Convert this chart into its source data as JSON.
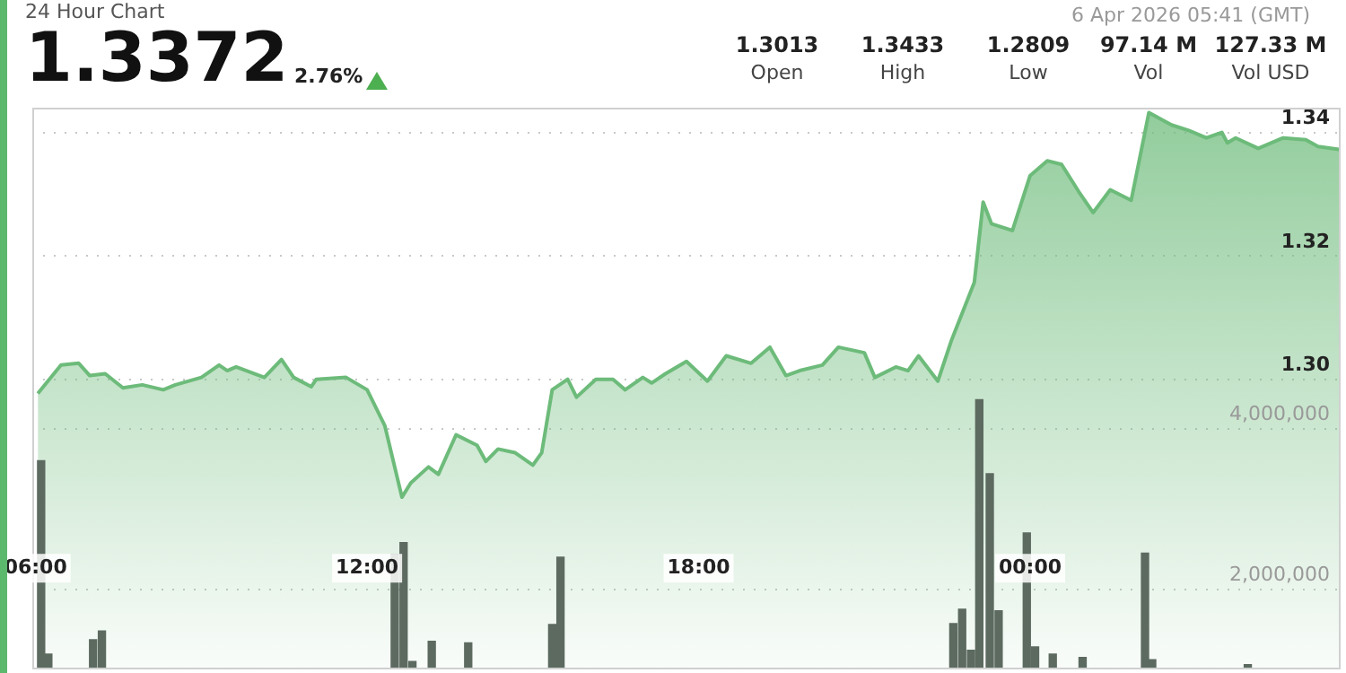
{
  "chart_data": {
    "type": "area",
    "title": "24 Hour Chart",
    "annotations": [
      "1.3372",
      "2.76%",
      "1.3013",
      "Open",
      "1.3433",
      "High",
      "1.2809",
      "Low",
      "97.14 M",
      "Vol",
      "127.33 M",
      "Vol USD",
      "6 Apr 2026 05:41 (GMT)"
    ],
    "xlim": [
      5.94,
      29.62
    ],
    "xticks": [
      {
        "value": 6,
        "label": "06:00"
      },
      {
        "value": 12,
        "label": "12:00"
      },
      {
        "value": 18,
        "label": "18:00"
      },
      {
        "value": 24,
        "label": "00:00"
      }
    ],
    "ylim": [
      1.253,
      1.344
    ],
    "yticks": [
      {
        "value": 1.3,
        "label": "1.30"
      },
      1.32,
      1.34
    ],
    "y2lim": [
      1000000,
      8000000
    ],
    "y2ticks": [
      {
        "value": 2000000,
        "label": "2,000,000"
      },
      {
        "value": 4000000,
        "label": "4,000,000"
      }
    ],
    "grid": "y",
    "legend": false,
    "marker": "none",
    "line_style": "solid",
    "series": [
      {
        "color": "#6dbb7a",
        "x": [
          6.04,
          6.46,
          6.78,
          6.98,
          7.26,
          7.58,
          7.93,
          8.31,
          8.53,
          9.0,
          9.32,
          9.47,
          9.63,
          10.14,
          10.45,
          10.67,
          10.99,
          11.08,
          11.62,
          12.0,
          12.32,
          12.63,
          12.79,
          13.11,
          13.29,
          13.61,
          13.99,
          14.15,
          14.37,
          14.68,
          15.0,
          15.16,
          15.35,
          15.63,
          15.79,
          16.14,
          16.45,
          16.67,
          16.99,
          17.15,
          17.4,
          17.78,
          18.16,
          18.5,
          18.95,
          19.29,
          19.58,
          19.83,
          20.24,
          20.53,
          21.0,
          21.19,
          21.57,
          21.79,
          21.98,
          22.33,
          22.58,
          22.99,
          23.15,
          23.3,
          23.68,
          24.0,
          24.31,
          24.57,
          24.88,
          25.14,
          25.45,
          25.83,
          26.15,
          26.56,
          26.87,
          27.19,
          27.47,
          27.57,
          27.72,
          28.13,
          28.58,
          28.99,
          29.21,
          29.62
        ],
        "values": [
          1.2977,
          1.3023,
          1.3026,
          1.3006,
          1.3009,
          1.2986,
          1.2991,
          1.2983,
          1.2991,
          1.3003,
          1.3023,
          1.3014,
          1.302,
          1.3003,
          1.3032,
          1.3003,
          1.2988,
          1.3,
          1.3003,
          1.2983,
          1.2925,
          1.2809,
          1.2832,
          1.2858,
          1.2846,
          1.291,
          1.2893,
          1.2867,
          1.2887,
          1.2881,
          1.2861,
          1.2881,
          1.2983,
          1.3,
          1.2971,
          1.3,
          1.3,
          1.2983,
          1.3003,
          1.2994,
          1.3009,
          1.3029,
          1.2997,
          1.3038,
          1.3026,
          1.3052,
          1.3006,
          1.3014,
          1.3023,
          1.3052,
          1.3043,
          1.3003,
          1.302,
          1.3014,
          1.3038,
          1.2997,
          1.3064,
          1.3157,
          1.3287,
          1.3252,
          1.3241,
          1.333,
          1.3354,
          1.3348,
          1.3304,
          1.327,
          1.3307,
          1.329,
          1.3432,
          1.3412,
          1.3403,
          1.3391,
          1.34,
          1.3383,
          1.3391,
          1.3374,
          1.3391,
          1.3388,
          1.3377,
          1.3372
        ]
      },
      {
        "type": "bar",
        "axis": "y2",
        "color": "#5c6a60",
        "x": [
          6.1,
          6.23,
          7.04,
          7.2,
          12.5,
          12.66,
          12.82,
          13.17,
          13.83,
          15.35,
          15.5,
          22.61,
          22.77,
          22.93,
          23.08,
          23.27,
          23.43,
          23.94,
          24.09,
          24.41,
          24.95,
          26.08,
          26.21,
          27.94
        ],
        "values": [
          3600000,
          1190000,
          1370000,
          1480000,
          2430000,
          2580000,
          1100000,
          1350000,
          1330000,
          1560000,
          2400000,
          1570000,
          1750000,
          1240000,
          4360000,
          3440000,
          1730000,
          2700000,
          1280000,
          1190000,
          1150000,
          2450000,
          1120000,
          1060000
        ]
      }
    ]
  }
}
